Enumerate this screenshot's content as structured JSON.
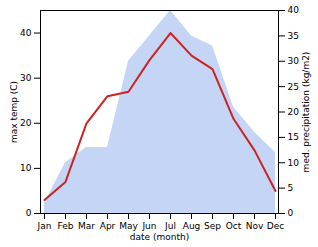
{
  "chart_data": {
    "type": "line",
    "categories": [
      "Jan",
      "Feb",
      "Mar",
      "Apr",
      "May",
      "Jun",
      "Jul",
      "Aug",
      "Sep",
      "Oct",
      "Nov",
      "Dec"
    ],
    "xlabel": "date (month)",
    "ylabel": "max temp (C)",
    "y2label": "med. precipitation (kg/m2)",
    "ylim": [
      0,
      45
    ],
    "yticks": [
      0,
      10,
      20,
      30,
      40
    ],
    "y2lim": [
      0,
      40
    ],
    "y2ticks": [
      0,
      5,
      10,
      15,
      20,
      25,
      30,
      35,
      40
    ],
    "grid": false,
    "series": [
      {
        "type": "area",
        "axis": "y2",
        "color": "#c5d5f5",
        "values": [
          2,
          10,
          13,
          13,
          30,
          35,
          40,
          35,
          33,
          21,
          16,
          12
        ]
      },
      {
        "type": "line",
        "color": "#cc2222",
        "values": [
          3,
          7,
          20,
          26,
          27,
          34,
          40,
          35,
          32,
          21,
          14,
          5
        ]
      }
    ]
  }
}
